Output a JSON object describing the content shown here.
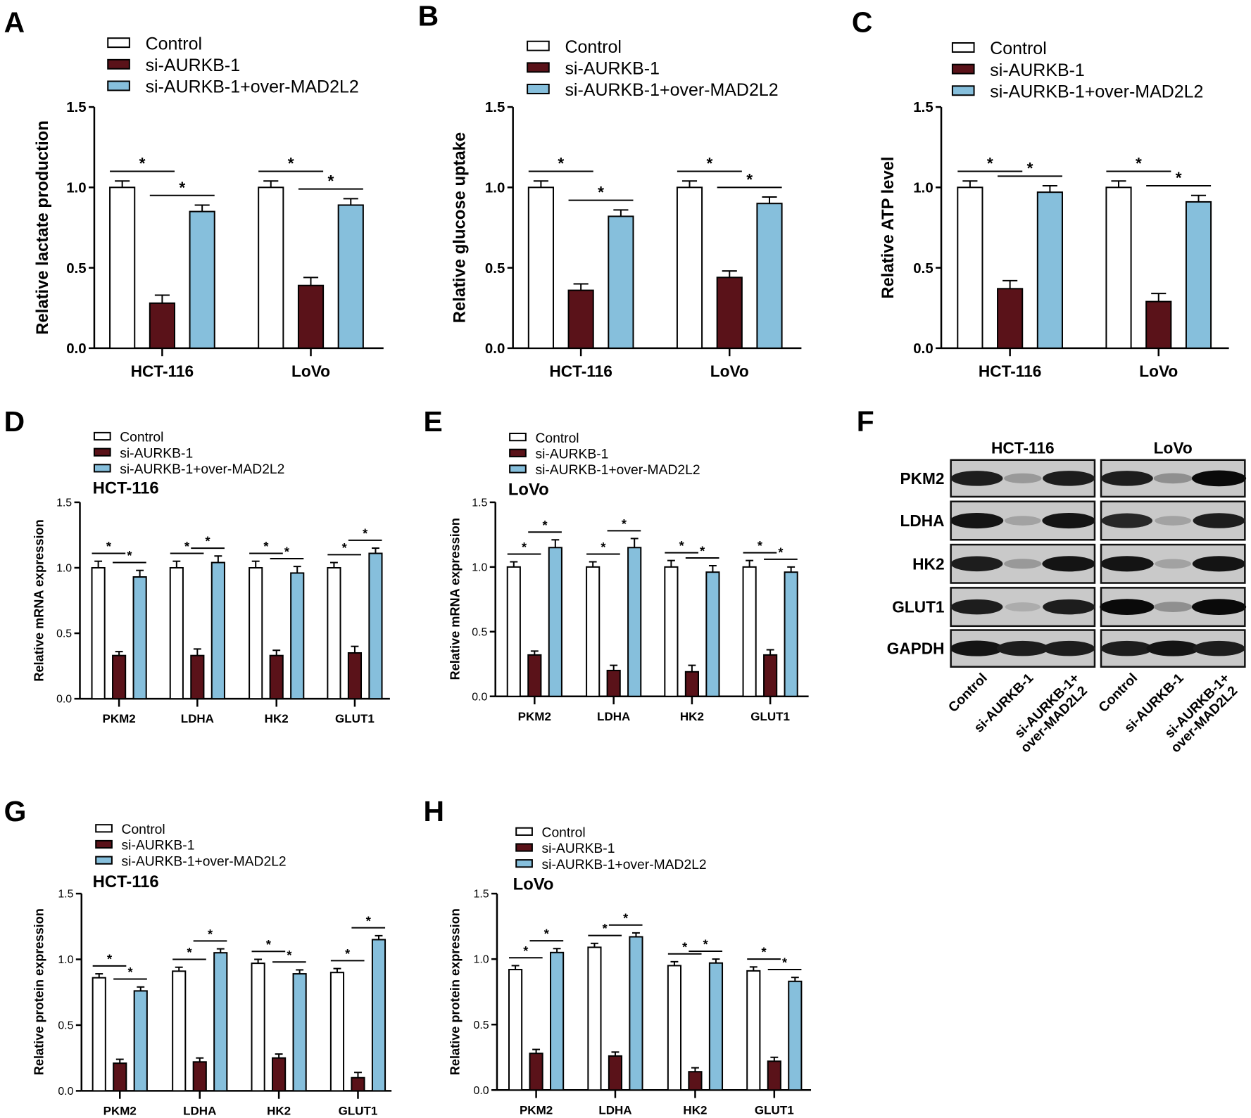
{
  "colors": {
    "control": "#ffffff",
    "si": "#5a1219",
    "over": "#86bfdc",
    "axis": "#000000"
  },
  "legend": [
    "Control",
    "si-AURKB-1",
    "si-AURKB-1+over-MAD2L2"
  ],
  "chart_data": [
    {
      "panel": "A",
      "type": "bar",
      "ylabel": "Relative lactate production",
      "ylim": [
        0,
        1.5
      ],
      "yticks": [
        "0.0",
        "0.5",
        "1.0",
        "1.5"
      ],
      "categories": [
        "HCT-116",
        "LoVo"
      ],
      "series": [
        {
          "name": "Control",
          "values": [
            1.0,
            1.0
          ],
          "errors": [
            0.04,
            0.04
          ]
        },
        {
          "name": "si-AURKB-1",
          "values": [
            0.28,
            0.39
          ],
          "errors": [
            0.05,
            0.05
          ]
        },
        {
          "name": "si-AURKB-1+over-MAD2L2",
          "values": [
            0.85,
            0.89
          ],
          "errors": [
            0.04,
            0.04
          ]
        }
      ],
      "significance": "*"
    },
    {
      "panel": "B",
      "type": "bar",
      "ylabel": "Relative glucose uptake",
      "ylim": [
        0,
        1.5
      ],
      "yticks": [
        "0.0",
        "0.5",
        "1.0",
        "1.5"
      ],
      "categories": [
        "HCT-116",
        "LoVo"
      ],
      "series": [
        {
          "name": "Control",
          "values": [
            1.0,
            1.0
          ],
          "errors": [
            0.04,
            0.04
          ]
        },
        {
          "name": "si-AURKB-1",
          "values": [
            0.36,
            0.44
          ],
          "errors": [
            0.04,
            0.04
          ]
        },
        {
          "name": "si-AURKB-1+over-MAD2L2",
          "values": [
            0.82,
            0.9
          ],
          "errors": [
            0.04,
            0.04
          ]
        }
      ],
      "significance": "*"
    },
    {
      "panel": "C",
      "type": "bar",
      "ylabel": "Relative ATP level",
      "ylim": [
        0,
        1.5
      ],
      "yticks": [
        "0.0",
        "0.5",
        "1.0",
        "1.5"
      ],
      "categories": [
        "HCT-116",
        "LoVo"
      ],
      "series": [
        {
          "name": "Control",
          "values": [
            1.0,
            1.0
          ],
          "errors": [
            0.04,
            0.04
          ]
        },
        {
          "name": "si-AURKB-1",
          "values": [
            0.37,
            0.29
          ],
          "errors": [
            0.05,
            0.05
          ]
        },
        {
          "name": "si-AURKB-1+over-MAD2L2",
          "values": [
            0.97,
            0.91
          ],
          "errors": [
            0.04,
            0.04
          ]
        }
      ],
      "significance": "*"
    },
    {
      "panel": "D",
      "type": "bar",
      "subtitle": "HCT-116",
      "ylabel": "Relative mRNA expression",
      "ylim": [
        0,
        1.5
      ],
      "yticks": [
        "0.0",
        "0.5",
        "1.0",
        "1.5"
      ],
      "categories": [
        "PKM2",
        "LDHA",
        "HK2",
        "GLUT1"
      ],
      "series": [
        {
          "name": "Control",
          "values": [
            1.0,
            1.0,
            1.0,
            1.0
          ],
          "errors": [
            0.05,
            0.05,
            0.05,
            0.04
          ]
        },
        {
          "name": "si-AURKB-1",
          "values": [
            0.33,
            0.33,
            0.33,
            0.35
          ],
          "errors": [
            0.03,
            0.05,
            0.04,
            0.05
          ]
        },
        {
          "name": "si-AURKB-1+over-MAD2L2",
          "values": [
            0.93,
            1.04,
            0.96,
            1.11
          ],
          "errors": [
            0.05,
            0.05,
            0.05,
            0.04
          ]
        }
      ],
      "significance": "*"
    },
    {
      "panel": "E",
      "type": "bar",
      "subtitle": "LoVo",
      "ylabel": "Relative mRNA expression",
      "ylim": [
        0,
        1.5
      ],
      "yticks": [
        "0.0",
        "0.5",
        "1.0",
        "1.5"
      ],
      "categories": [
        "PKM2",
        "LDHA",
        "HK2",
        "GLUT1"
      ],
      "series": [
        {
          "name": "Control",
          "values": [
            1.0,
            1.0,
            1.0,
            1.0
          ],
          "errors": [
            0.04,
            0.04,
            0.05,
            0.05
          ]
        },
        {
          "name": "si-AURKB-1",
          "values": [
            0.32,
            0.2,
            0.19,
            0.32
          ],
          "errors": [
            0.03,
            0.04,
            0.05,
            0.04
          ]
        },
        {
          "name": "si-AURKB-1+over-MAD2L2",
          "values": [
            1.15,
            1.15,
            0.96,
            0.96
          ],
          "errors": [
            0.06,
            0.07,
            0.05,
            0.04
          ]
        }
      ],
      "significance": "*"
    },
    {
      "panel": "G",
      "type": "bar",
      "subtitle": "HCT-116",
      "ylabel": "Relative protein expression",
      "ylim": [
        0,
        1.5
      ],
      "yticks": [
        "0.0",
        "0.5",
        "1.0",
        "1.5"
      ],
      "categories": [
        "PKM2",
        "LDHA",
        "HK2",
        "GLUT1"
      ],
      "series": [
        {
          "name": "Control",
          "values": [
            0.86,
            0.91,
            0.97,
            0.9
          ],
          "errors": [
            0.03,
            0.03,
            0.03,
            0.03
          ]
        },
        {
          "name": "si-AURKB-1",
          "values": [
            0.21,
            0.22,
            0.25,
            0.1
          ],
          "errors": [
            0.03,
            0.03,
            0.03,
            0.04
          ]
        },
        {
          "name": "si-AURKB-1+over-MAD2L2",
          "values": [
            0.76,
            1.05,
            0.89,
            1.15
          ],
          "errors": [
            0.03,
            0.03,
            0.03,
            0.03
          ]
        }
      ],
      "significance": "*"
    },
    {
      "panel": "H",
      "type": "bar",
      "subtitle": "LoVo",
      "ylabel": "Relative protein expression",
      "ylim": [
        0,
        1.5
      ],
      "yticks": [
        "0.0",
        "0.5",
        "1.0",
        "1.5"
      ],
      "categories": [
        "PKM2",
        "LDHA",
        "HK2",
        "GLUT1"
      ],
      "series": [
        {
          "name": "Control",
          "values": [
            0.92,
            1.09,
            0.95,
            0.91
          ],
          "errors": [
            0.03,
            0.03,
            0.03,
            0.03
          ]
        },
        {
          "name": "si-AURKB-1",
          "values": [
            0.28,
            0.26,
            0.14,
            0.22
          ],
          "errors": [
            0.03,
            0.03,
            0.03,
            0.03
          ]
        },
        {
          "name": "si-AURKB-1+over-MAD2L2",
          "values": [
            1.05,
            1.17,
            0.97,
            0.83
          ],
          "errors": [
            0.03,
            0.03,
            0.03,
            0.03
          ]
        }
      ],
      "significance": "*"
    }
  ],
  "western_blot": {
    "panel": "F",
    "cell_lines": [
      "HCT-116",
      "LoVo"
    ],
    "proteins": [
      "PKM2",
      "LDHA",
      "HK2",
      "GLUT1",
      "GAPDH"
    ],
    "lanes": [
      "Control",
      "si-AURKB-1",
      "si-AURKB-1+\nover-MAD2L2"
    ],
    "lane_lines": [
      [
        "Control"
      ],
      [
        "si-AURKB-1"
      ],
      [
        "si-AURKB-1+",
        "over-MAD2L2"
      ]
    ],
    "band_intensity": {
      "HCT-116": [
        [
          0.9,
          0.25,
          0.9
        ],
        [
          0.95,
          0.2,
          0.95
        ],
        [
          0.9,
          0.25,
          0.95
        ],
        [
          0.9,
          0.15,
          0.9
        ],
        [
          0.95,
          0.9,
          0.9
        ]
      ],
      "LoVo": [
        [
          0.9,
          0.3,
          1.0
        ],
        [
          0.85,
          0.2,
          0.9
        ],
        [
          0.95,
          0.2,
          0.95
        ],
        [
          1.0,
          0.3,
          1.0
        ],
        [
          0.9,
          0.95,
          0.9
        ]
      ]
    }
  }
}
